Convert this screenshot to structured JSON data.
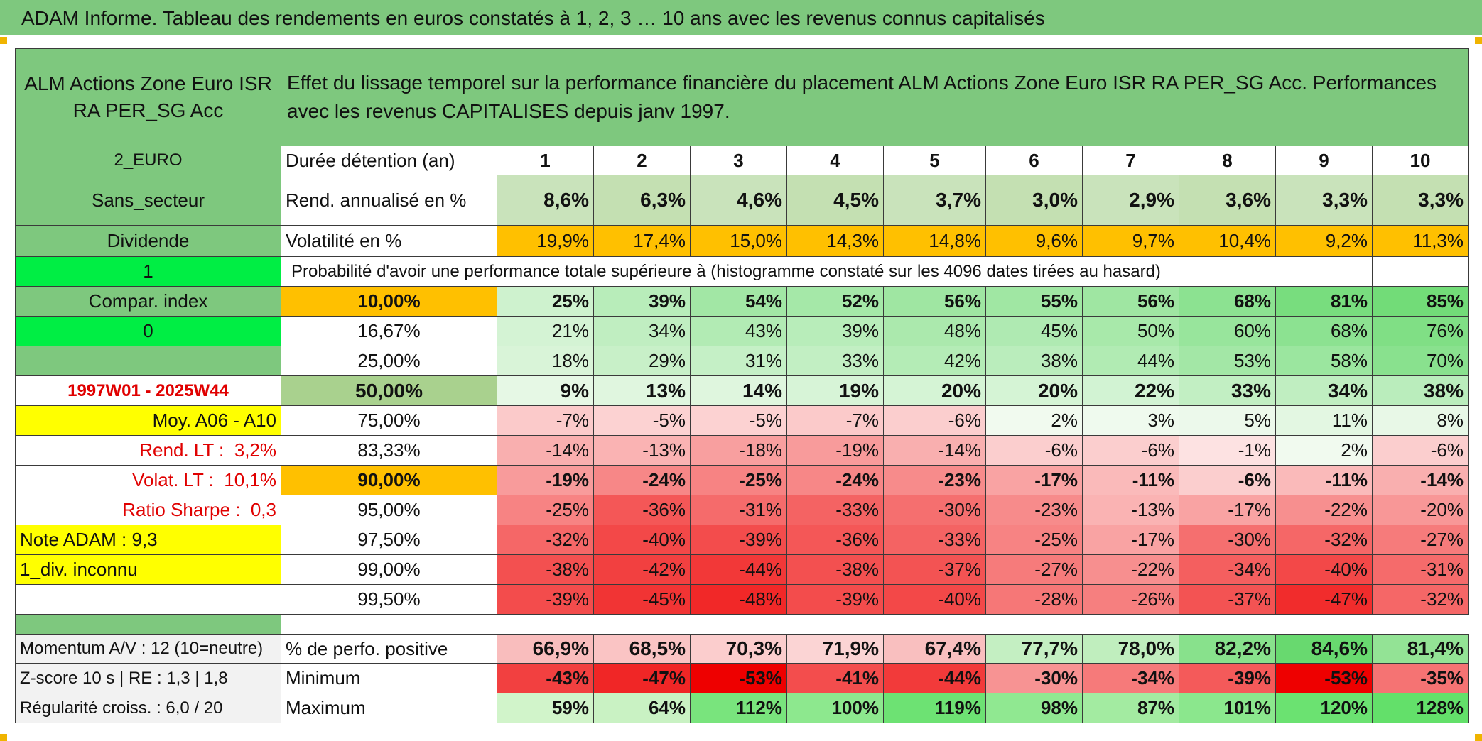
{
  "title": "ADAM Informe. Tableau des rendements en euros constatés à 1, 2, 3 … 10 ans avec les revenus connus capitalisés",
  "fund_name": "ALM Actions Zone Euro ISR RA PER_SG Acc",
  "description": "Effet du lissage temporel sur la performance financière du placement ALM Actions Zone Euro ISR RA PER_SG Acc. Performances avec les revenus CAPITALISES depuis janv 1997.",
  "left": {
    "zone": "2_EURO",
    "sector": "Sans_secteur",
    "type": "Dividende",
    "flag1": "1",
    "compar": "Compar. index",
    "flag0": "0",
    "period": "1997W01 - 2025W44",
    "moy": "Moy. A06 - A10",
    "rend_lt_label": "Rend. LT :",
    "rend_lt_value": "3,2%",
    "volat_lt_label": "Volat. LT :",
    "volat_lt_value": "10,1%",
    "sharpe_label": "Ratio Sharpe :",
    "sharpe_value": "0,3",
    "note": "Note ADAM : 9,3",
    "div": "1_div. inconnu",
    "momentum": "Momentum A/V : 12 (10=neutre)",
    "zscore": "Z-score 10 s | RE : 1,3 | 1,8",
    "regularite": "Régularité croiss. : 6,0 / 20"
  },
  "labels": {
    "duree": "Durée détention (an)",
    "rend": "Rend. annualisé en %",
    "vol": "Volatilité en %",
    "proba": "Probabilité d'avoir une performance totale supérieure à (histogramme constaté sur les 4096 dates tirées au hasard)",
    "positive": "% de perfo. positive",
    "minimum": "Minimum",
    "maximum": "Maximum"
  },
  "years": [
    "1",
    "2",
    "3",
    "4",
    "5",
    "6",
    "7",
    "8",
    "9",
    "10"
  ],
  "rend": [
    "8,6%",
    "6,3%",
    "4,6%",
    "4,5%",
    "3,7%",
    "3,0%",
    "2,9%",
    "3,6%",
    "3,3%",
    "3,3%"
  ],
  "vol": [
    "19,9%",
    "17,4%",
    "15,0%",
    "14,3%",
    "14,8%",
    "9,6%",
    "9,7%",
    "10,4%",
    "9,2%",
    "11,3%"
  ],
  "quantiles": [
    {
      "label": "10,00%",
      "values": [
        "25%",
        "39%",
        "54%",
        "52%",
        "56%",
        "55%",
        "56%",
        "68%",
        "81%",
        "85%"
      ]
    },
    {
      "label": "16,67%",
      "values": [
        "21%",
        "34%",
        "43%",
        "39%",
        "48%",
        "45%",
        "50%",
        "60%",
        "68%",
        "76%"
      ]
    },
    {
      "label": "25,00%",
      "values": [
        "18%",
        "29%",
        "31%",
        "33%",
        "42%",
        "38%",
        "44%",
        "53%",
        "58%",
        "70%"
      ]
    },
    {
      "label": "50,00%",
      "values": [
        "9%",
        "13%",
        "14%",
        "19%",
        "20%",
        "20%",
        "22%",
        "33%",
        "34%",
        "38%"
      ]
    },
    {
      "label": "75,00%",
      "values": [
        "-7%",
        "-5%",
        "-5%",
        "-7%",
        "-6%",
        "2%",
        "3%",
        "5%",
        "11%",
        "8%"
      ]
    },
    {
      "label": "83,33%",
      "values": [
        "-14%",
        "-13%",
        "-18%",
        "-19%",
        "-14%",
        "-6%",
        "-6%",
        "-1%",
        "2%",
        "-6%"
      ]
    },
    {
      "label": "90,00%",
      "values": [
        "-19%",
        "-24%",
        "-25%",
        "-24%",
        "-23%",
        "-17%",
        "-11%",
        "-6%",
        "-11%",
        "-14%"
      ]
    },
    {
      "label": "95,00%",
      "values": [
        "-25%",
        "-36%",
        "-31%",
        "-33%",
        "-30%",
        "-23%",
        "-13%",
        "-17%",
        "-22%",
        "-20%"
      ]
    },
    {
      "label": "97,50%",
      "values": [
        "-32%",
        "-40%",
        "-39%",
        "-36%",
        "-33%",
        "-25%",
        "-17%",
        "-30%",
        "-32%",
        "-27%"
      ]
    },
    {
      "label": "99,00%",
      "values": [
        "-38%",
        "-42%",
        "-44%",
        "-38%",
        "-37%",
        "-27%",
        "-22%",
        "-34%",
        "-40%",
        "-31%"
      ]
    },
    {
      "label": "99,50%",
      "values": [
        "-39%",
        "-45%",
        "-48%",
        "-39%",
        "-40%",
        "-28%",
        "-26%",
        "-37%",
        "-47%",
        "-32%"
      ]
    }
  ],
  "positive": [
    "66,9%",
    "68,5%",
    "70,3%",
    "71,9%",
    "67,4%",
    "77,7%",
    "78,0%",
    "82,2%",
    "84,6%",
    "81,4%"
  ],
  "minimum": [
    "-43%",
    "-47%",
    "-53%",
    "-41%",
    "-44%",
    "-30%",
    "-34%",
    "-39%",
    "-53%",
    "-35%"
  ],
  "maximum": [
    "59%",
    "64%",
    "112%",
    "100%",
    "119%",
    "98%",
    "87%",
    "101%",
    "120%",
    "128%"
  ],
  "colors": {
    "header_green": "#7ec87e",
    "bright_green": "#00ee44",
    "yellow": "#ffff00",
    "orange": "#ffc000",
    "positive_green": "#63be7b",
    "negative_red": "#f8696b"
  }
}
